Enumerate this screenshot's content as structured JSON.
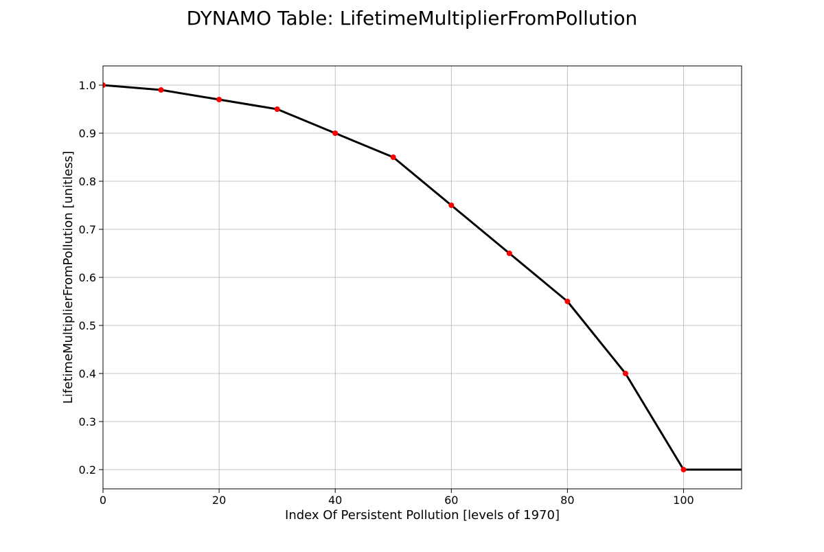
{
  "chart_data": {
    "type": "line",
    "title": "DYNAMO Table: LifetimeMultiplierFromPollution",
    "xlabel": "Index Of Persistent Pollution [levels of 1970]",
    "ylabel": "LifetimeMultiplierFromPollution [unitless]",
    "xlim": [
      0,
      110
    ],
    "ylim": [
      0.16,
      1.04
    ],
    "grid": true,
    "x_ticks": [
      0,
      20,
      40,
      60,
      80,
      100
    ],
    "x_tick_labels": [
      "0",
      "20",
      "40",
      "60",
      "80",
      "100"
    ],
    "y_ticks": [
      0.2,
      0.3,
      0.4,
      0.5,
      0.6,
      0.7,
      0.8,
      0.9,
      1.0
    ],
    "y_tick_labels": [
      "0.2",
      "0.3",
      "0.4",
      "0.5",
      "0.6",
      "0.7",
      "0.8",
      "0.9",
      "1.0"
    ],
    "line": {
      "color": "#000000",
      "x": [
        0,
        10,
        20,
        30,
        40,
        50,
        60,
        70,
        80,
        90,
        100,
        110
      ],
      "y": [
        1.0,
        0.99,
        0.97,
        0.95,
        0.9,
        0.85,
        0.75,
        0.65,
        0.55,
        0.4,
        0.2,
        0.2
      ]
    },
    "points": {
      "color": "#ff0000",
      "x": [
        0,
        10,
        20,
        30,
        40,
        50,
        60,
        70,
        80,
        90,
        100
      ],
      "y": [
        1.0,
        0.99,
        0.97,
        0.95,
        0.9,
        0.85,
        0.75,
        0.65,
        0.55,
        0.4,
        0.2
      ]
    }
  }
}
